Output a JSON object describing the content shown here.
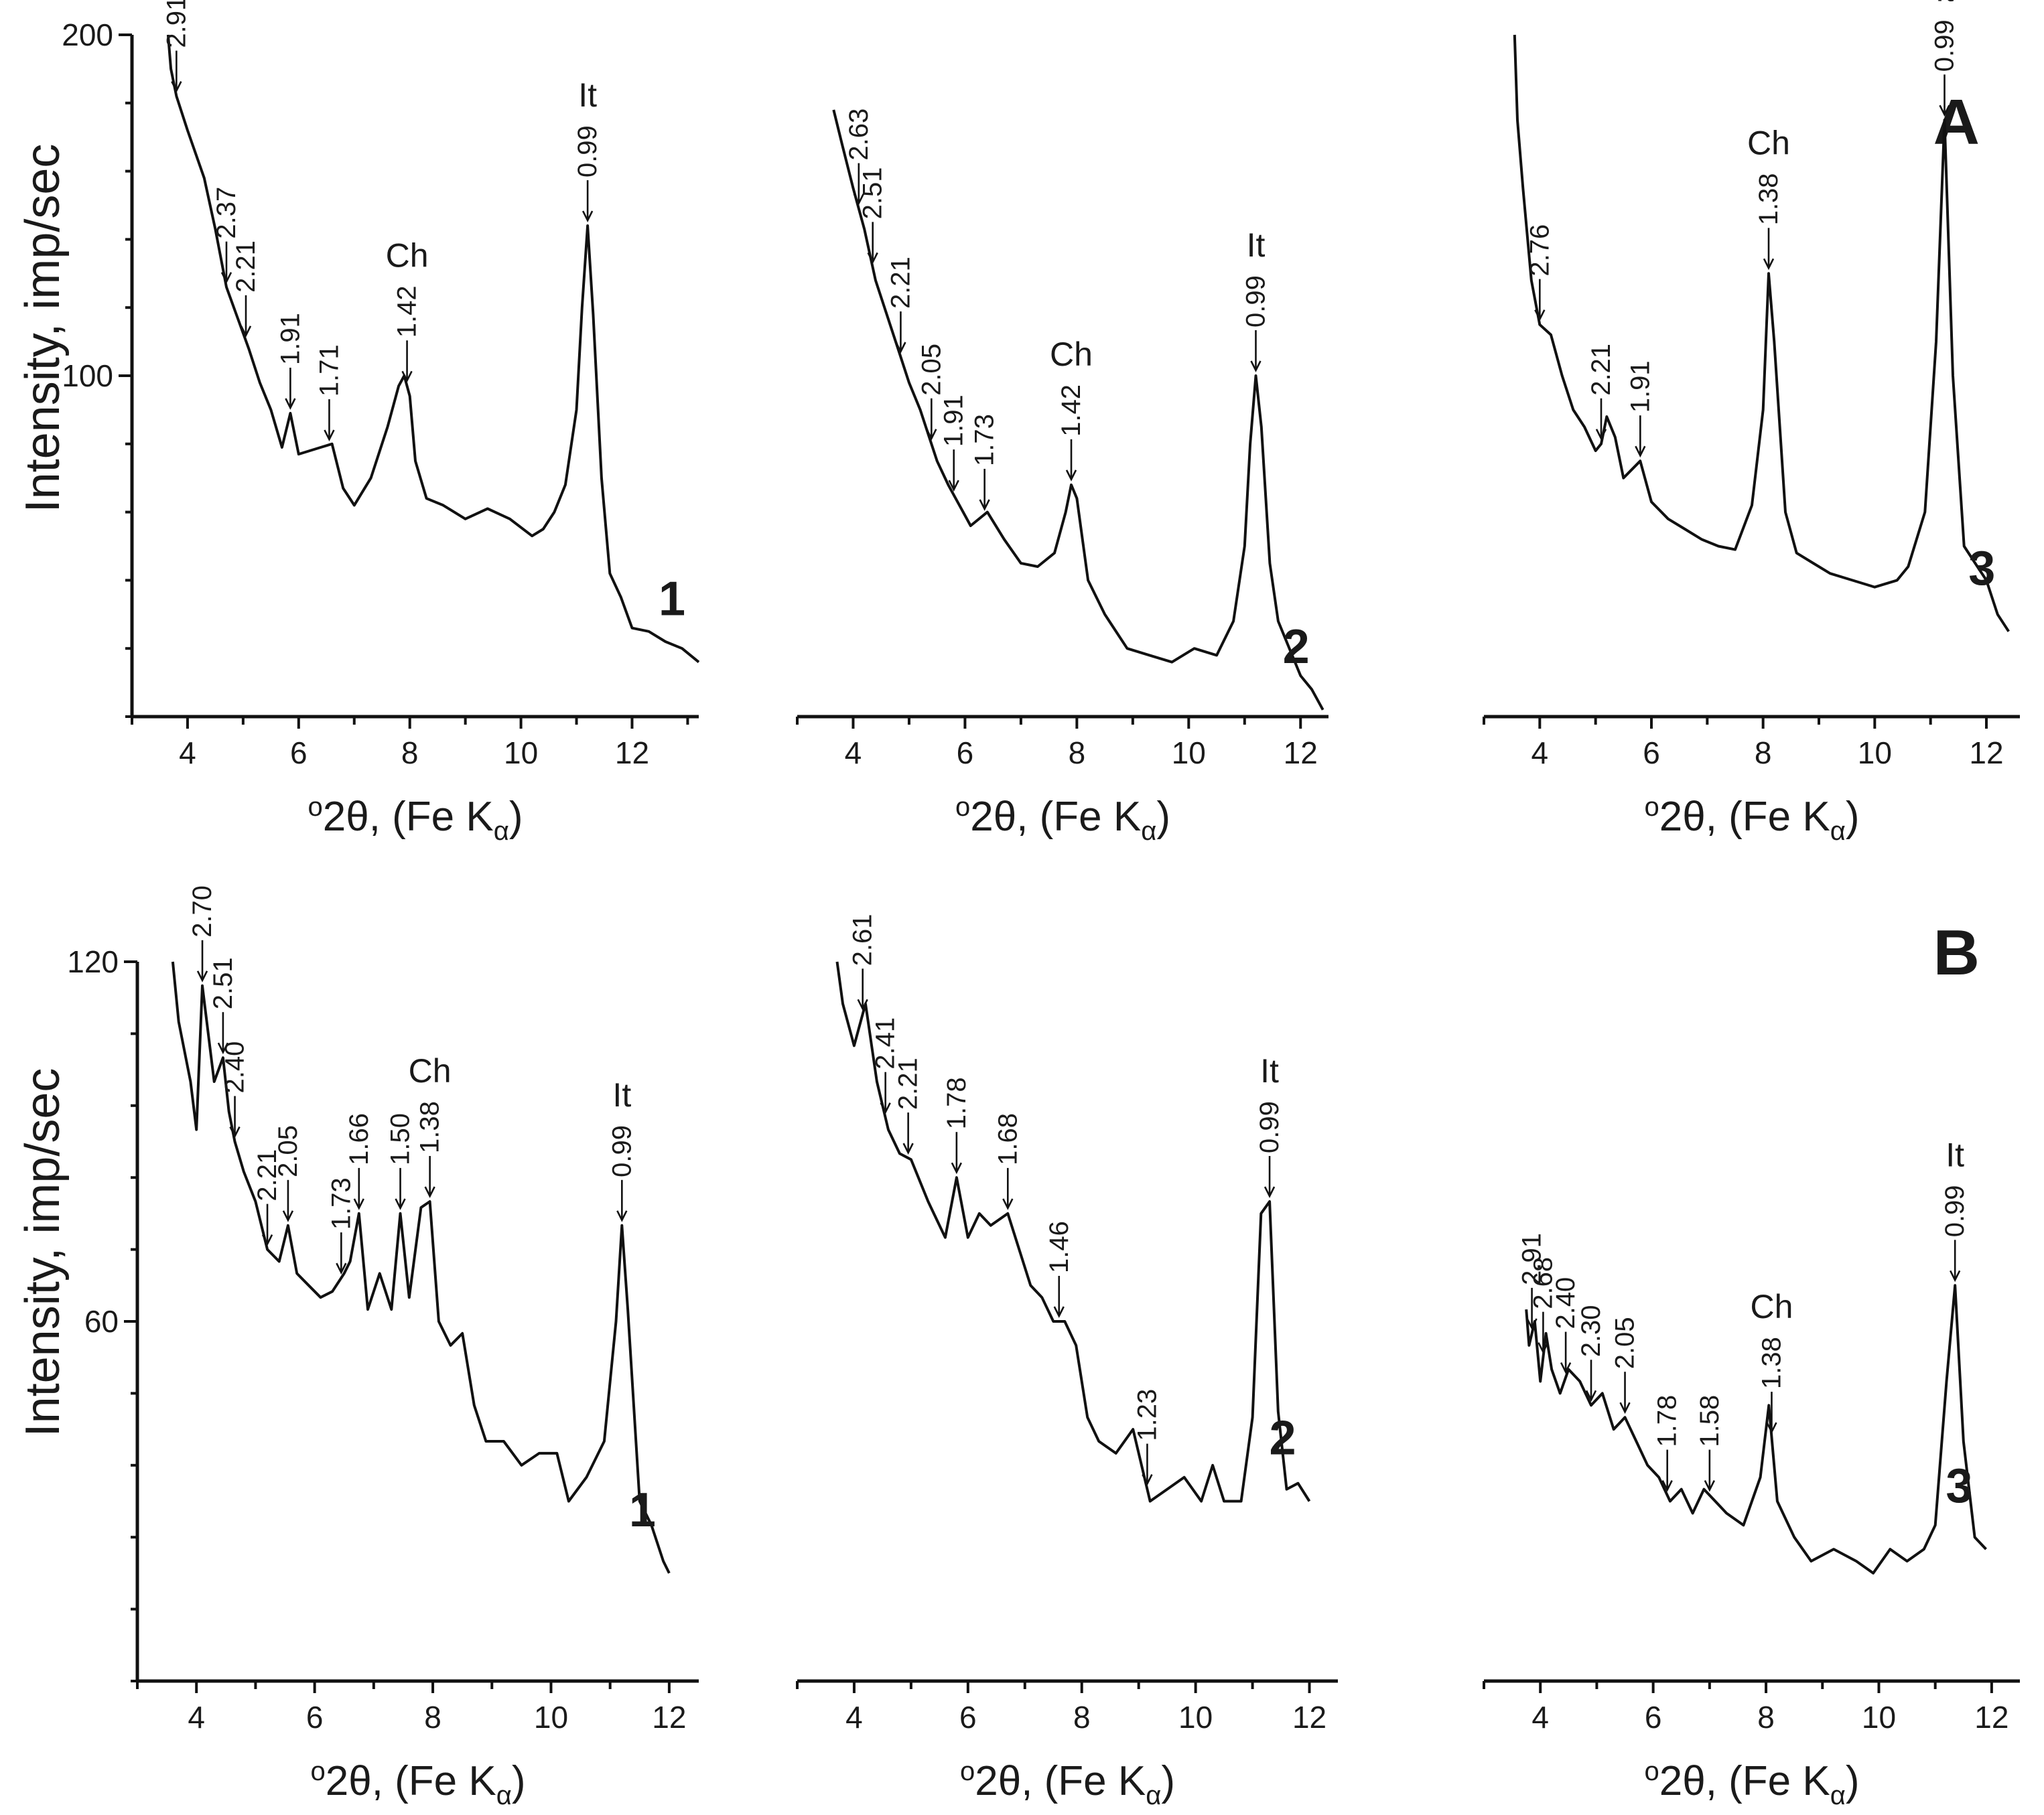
{
  "figure": {
    "panel_labels": [
      "A",
      "B"
    ],
    "y_axis_label": "Intensity, imp/sec",
    "x_axis_label_parts": [
      "o",
      "2θ, (Fe K",
      "α",
      ")"
    ],
    "sample_labels": [
      "1",
      "2",
      "3"
    ]
  },
  "chart_data": [
    {
      "type": "line",
      "panel": "A",
      "sample": "1",
      "xlim": [
        3,
        13.2
      ],
      "ylim": [
        0,
        200
      ],
      "xticks": [
        4,
        6,
        8,
        10,
        12
      ],
      "yticks": [
        100,
        200
      ],
      "ytick_labels": [
        "100",
        "200"
      ],
      "xlabel": "o2θ, (Fe Kα)",
      "ylabel": "Intensity, imp/sec",
      "x": [
        3.65,
        3.7,
        3.8,
        4.0,
        4.3,
        4.5,
        4.7,
        4.9,
        5.1,
        5.3,
        5.5,
        5.7,
        5.85,
        6.0,
        6.2,
        6.4,
        6.6,
        6.8,
        7.0,
        7.3,
        7.6,
        7.8,
        7.9,
        8.0,
        8.1,
        8.3,
        8.6,
        9.0,
        9.4,
        9.8,
        10.2,
        10.4,
        10.6,
        10.8,
        11.0,
        11.1,
        11.2,
        11.3,
        11.45,
        11.6,
        11.8,
        12.0,
        12.3,
        12.6,
        12.9,
        13.2
      ],
      "y": [
        200,
        190,
        182,
        172,
        158,
        143,
        126,
        117,
        108,
        98,
        90,
        79,
        89,
        77,
        78,
        79,
        80,
        67,
        62,
        70,
        85,
        97,
        100,
        94,
        75,
        64,
        62,
        58,
        61,
        58,
        53,
        55,
        60,
        68,
        90,
        120,
        144,
        118,
        70,
        42,
        35,
        26,
        25,
        22,
        20,
        16
      ],
      "peaks": [
        {
          "label": "2.91",
          "x": 3.8
        },
        {
          "label": "2.37",
          "x": 4.7
        },
        {
          "label": "2.21",
          "x": 5.05
        },
        {
          "label": "1.91",
          "x": 5.85
        },
        {
          "label": "1.71",
          "x": 6.55
        },
        {
          "label": "1.42",
          "x": 7.95,
          "mineral": "Ch"
        },
        {
          "label": "0.99",
          "x": 11.2,
          "mineral": "It"
        }
      ]
    },
    {
      "type": "line",
      "panel": "A",
      "sample": "2",
      "xlim": [
        3,
        12.5
      ],
      "ylim": [
        0,
        200
      ],
      "xticks": [
        4,
        6,
        8,
        10,
        12
      ],
      "yticks": [],
      "ytick_labels": [],
      "xlabel": "o2θ, (Fe Kα)",
      "ylabel": "",
      "x": [
        3.65,
        3.8,
        4.0,
        4.2,
        4.4,
        4.6,
        4.8,
        5.0,
        5.2,
        5.4,
        5.5,
        5.7,
        5.9,
        6.1,
        6.4,
        6.7,
        7.0,
        7.3,
        7.6,
        7.8,
        7.9,
        8.0,
        8.2,
        8.5,
        8.9,
        9.3,
        9.7,
        10.1,
        10.5,
        10.8,
        11.0,
        11.1,
        11.2,
        11.3,
        11.45,
        11.6,
        11.8,
        12.0,
        12.2,
        12.4
      ],
      "y": [
        178,
        168,
        155,
        143,
        128,
        118,
        108,
        98,
        90,
        80,
        75,
        68,
        62,
        56,
        60,
        52,
        45,
        44,
        48,
        60,
        68,
        64,
        40,
        30,
        20,
        18,
        16,
        20,
        18,
        28,
        50,
        80,
        100,
        85,
        45,
        28,
        20,
        12,
        8,
        2
      ],
      "peaks": [
        {
          "label": "2.63",
          "x": 4.1
        },
        {
          "label": "2.51",
          "x": 4.35
        },
        {
          "label": "2.21",
          "x": 4.85
        },
        {
          "label": "2.05",
          "x": 5.4
        },
        {
          "label": "1.91",
          "x": 5.8
        },
        {
          "label": "1.73",
          "x": 6.35
        },
        {
          "label": "1.42",
          "x": 7.9,
          "mineral": "Ch"
        },
        {
          "label": "0.99",
          "x": 11.2,
          "mineral": "It"
        }
      ]
    },
    {
      "type": "line",
      "panel": "A",
      "sample": "3",
      "xlim": [
        3,
        12.6
      ],
      "ylim": [
        0,
        200
      ],
      "xticks": [
        4,
        6,
        8,
        10,
        12
      ],
      "yticks": [],
      "ytick_labels": [],
      "xlabel": "o2θ, (Fe Kα)",
      "ylabel": "",
      "x": [
        3.55,
        3.6,
        3.7,
        3.85,
        4.0,
        4.2,
        4.4,
        4.6,
        4.8,
        5.0,
        5.1,
        5.2,
        5.35,
        5.5,
        5.8,
        6.0,
        6.3,
        6.6,
        6.9,
        7.2,
        7.5,
        7.8,
        8.0,
        8.1,
        8.2,
        8.4,
        8.6,
        8.9,
        9.2,
        9.6,
        10.0,
        10.4,
        10.6,
        10.9,
        11.1,
        11.25,
        11.4,
        11.6,
        11.8,
        12.0,
        12.2,
        12.4
      ],
      "y": [
        200,
        175,
        155,
        128,
        115,
        112,
        100,
        90,
        85,
        78,
        80,
        88,
        82,
        70,
        75,
        63,
        58,
        55,
        52,
        50,
        49,
        62,
        90,
        130,
        110,
        60,
        48,
        45,
        42,
        40,
        38,
        40,
        44,
        60,
        110,
        175,
        100,
        50,
        45,
        40,
        30,
        25
      ],
      "peaks": [
        {
          "label": "2.76",
          "x": 4.0
        },
        {
          "label": "2.21",
          "x": 5.1
        },
        {
          "label": "1.91",
          "x": 5.8
        },
        {
          "label": "1.38",
          "x": 8.1,
          "mineral": "Ch"
        },
        {
          "label": "0.99",
          "x": 11.25,
          "mineral": "It"
        }
      ]
    },
    {
      "type": "line",
      "panel": "B",
      "sample": "1",
      "xlim": [
        3,
        12.5
      ],
      "ylim": [
        0,
        120
      ],
      "xticks": [
        4,
        6,
        8,
        10,
        12
      ],
      "yticks": [
        60,
        120
      ],
      "ytick_labels": [
        "60",
        "120"
      ],
      "xlabel": "o2θ, (Fe Kα)",
      "ylabel": "Intensity, imp/sec",
      "x": [
        3.6,
        3.7,
        3.9,
        4.0,
        4.1,
        4.3,
        4.45,
        4.55,
        4.65,
        4.8,
        5.0,
        5.2,
        5.4,
        5.55,
        5.7,
        5.9,
        6.1,
        6.3,
        6.5,
        6.6,
        6.75,
        6.9,
        7.1,
        7.3,
        7.45,
        7.6,
        7.8,
        7.95,
        8.1,
        8.3,
        8.5,
        8.7,
        8.9,
        9.2,
        9.5,
        9.8,
        10.1,
        10.3,
        10.6,
        10.9,
        11.1,
        11.2,
        11.3,
        11.5,
        11.7,
        11.9,
        12.0
      ],
      "y": [
        120,
        110,
        100,
        92,
        116,
        100,
        104,
        95,
        90,
        85,
        80,
        72,
        70,
        76,
        68,
        66,
        64,
        65,
        68,
        70,
        78,
        62,
        68,
        62,
        78,
        64,
        79,
        80,
        60,
        56,
        58,
        46,
        40,
        40,
        36,
        38,
        38,
        30,
        34,
        40,
        60,
        76,
        62,
        30,
        26,
        20,
        18
      ],
      "peaks": [
        {
          "label": "2.70",
          "x": 4.1
        },
        {
          "label": "2.51",
          "x": 4.45
        },
        {
          "label": "2.40",
          "x": 4.65
        },
        {
          "label": "2.21",
          "x": 5.2
        },
        {
          "label": "2.05",
          "x": 5.55
        },
        {
          "label": "1.73",
          "x": 6.45
        },
        {
          "label": "1.66",
          "x": 6.75
        },
        {
          "label": "1.50",
          "x": 7.45
        },
        {
          "label": "1.38",
          "x": 7.95,
          "mineral": "Ch"
        },
        {
          "label": "0.99",
          "x": 11.2,
          "mineral": "It"
        }
      ]
    },
    {
      "type": "line",
      "panel": "B",
      "sample": "2",
      "xlim": [
        3,
        12.5
      ],
      "ylim": [
        0,
        120
      ],
      "xticks": [
        4,
        6,
        8,
        10,
        12
      ],
      "yticks": [],
      "ytick_labels": [],
      "xlabel": "o2θ, (Fe Kα)",
      "ylabel": "",
      "x": [
        3.7,
        3.8,
        4.0,
        4.2,
        4.4,
        4.6,
        4.8,
        5.0,
        5.3,
        5.6,
        5.8,
        6.0,
        6.2,
        6.4,
        6.7,
        6.9,
        7.1,
        7.3,
        7.5,
        7.7,
        7.9,
        8.1,
        8.3,
        8.6,
        8.9,
        9.2,
        9.5,
        9.8,
        10.1,
        10.3,
        10.5,
        10.8,
        11.0,
        11.15,
        11.3,
        11.45,
        11.6,
        11.8,
        12.0
      ],
      "y": [
        120,
        113,
        106,
        113,
        100,
        92,
        88,
        87,
        80,
        74,
        84,
        74,
        78,
        76,
        78,
        72,
        66,
        64,
        60,
        60,
        56,
        44,
        40,
        38,
        42,
        30,
        32,
        34,
        30,
        36,
        30,
        30,
        44,
        78,
        80,
        45,
        32,
        33,
        30
      ],
      "peaks": [
        {
          "label": "2.61",
          "x": 4.15
        },
        {
          "label": "2.41",
          "x": 4.55
        },
        {
          "label": "2.21",
          "x": 4.95
        },
        {
          "label": "1.78",
          "x": 5.8
        },
        {
          "label": "1.68",
          "x": 6.7
        },
        {
          "label": "1.46",
          "x": 7.6
        },
        {
          "label": "1.23",
          "x": 9.15
        },
        {
          "label": "0.99",
          "x": 11.3,
          "mineral": "It"
        }
      ]
    },
    {
      "type": "line",
      "panel": "B",
      "sample": "3",
      "xlim": [
        3,
        12.5
      ],
      "ylim": [
        0,
        120
      ],
      "xticks": [
        4,
        6,
        8,
        10,
        12
      ],
      "yticks": [],
      "ytick_labels": [],
      "xlabel": "o2θ, (Fe Kα)",
      "ylabel": "",
      "x": [
        3.75,
        3.8,
        3.9,
        4.0,
        4.1,
        4.2,
        4.35,
        4.5,
        4.7,
        4.9,
        5.1,
        5.3,
        5.5,
        5.7,
        5.9,
        6.1,
        6.3,
        6.5,
        6.7,
        6.9,
        7.1,
        7.3,
        7.6,
        7.9,
        8.05,
        8.2,
        8.5,
        8.8,
        9.2,
        9.6,
        9.9,
        10.2,
        10.5,
        10.8,
        11.0,
        11.2,
        11.35,
        11.5,
        11.7,
        11.9
      ],
      "y": [
        62,
        56,
        60,
        50,
        58,
        52,
        48,
        52,
        50,
        46,
        48,
        42,
        44,
        40,
        36,
        34,
        30,
        32,
        28,
        32,
        30,
        28,
        26,
        34,
        46,
        30,
        24,
        20,
        22,
        20,
        18,
        22,
        20,
        22,
        26,
        50,
        66,
        40,
        24,
        22
      ],
      "peaks": [
        {
          "label": "2.91",
          "x": 3.85
        },
        {
          "label": "2.68",
          "x": 4.05
        },
        {
          "label": "2.40",
          "x": 4.45
        },
        {
          "label": "2.30",
          "x": 4.9
        },
        {
          "label": "2.05",
          "x": 5.5
        },
        {
          "label": "1.78",
          "x": 6.25
        },
        {
          "label": "1.58",
          "x": 7.0
        },
        {
          "label": "1.38",
          "x": 8.1,
          "mineral": "Ch"
        },
        {
          "label": "0.99",
          "x": 11.35,
          "mineral": "It"
        }
      ]
    }
  ]
}
